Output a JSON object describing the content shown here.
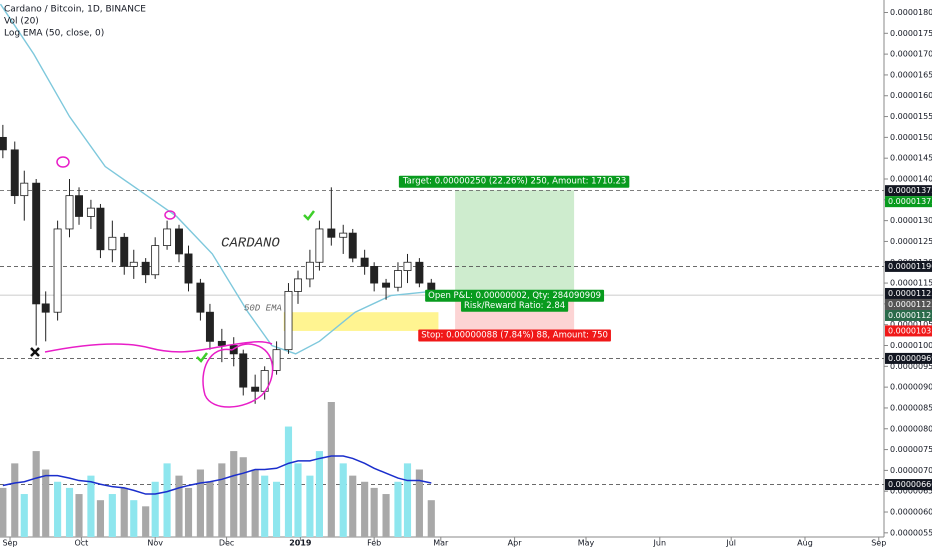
{
  "header": {
    "title": "Cardano / Bitcoin, 1D, BINANCE",
    "indicators": [
      "Vol (20)",
      "Log EMA (50, close, 0)"
    ]
  },
  "chart_data": {
    "type": "candlestick",
    "xlim": [
      -4.2,
      367.2
    ],
    "xticks": [
      {
        "value": 0,
        "label": "Sep"
      },
      {
        "value": 30,
        "label": "Oct"
      },
      {
        "value": 61,
        "label": "Nov"
      },
      {
        "value": 91,
        "label": "Dec"
      },
      {
        "value": 122,
        "label": "2019"
      },
      {
        "value": 153,
        "label": "Feb"
      },
      {
        "value": 181,
        "label": "Mar"
      },
      {
        "value": 212,
        "label": "Apr"
      },
      {
        "value": 242,
        "label": "May"
      },
      {
        "value": 273,
        "label": "Jun"
      },
      {
        "value": 303,
        "label": "Jul"
      },
      {
        "value": 334,
        "label": "Aug"
      },
      {
        "value": 365,
        "label": "Sep"
      }
    ],
    "ylim": [
      5.4e-06,
      1.83e-05
    ],
    "yticks": [
      {
        "value": 5.5e-06,
        "label": "0.00000550"
      },
      {
        "value": 6e-06,
        "label": "0.00000600"
      },
      {
        "value": 6.5e-06,
        "label": "0.00000650"
      },
      {
        "value": 7e-06,
        "label": "0.00000700"
      },
      {
        "value": 7.5e-06,
        "label": "0.00000750"
      },
      {
        "value": 8e-06,
        "label": "0.00000800"
      },
      {
        "value": 8.5e-06,
        "label": "0.00000850"
      },
      {
        "value": 9e-06,
        "label": "0.00000900"
      },
      {
        "value": 9.5e-06,
        "label": "0.00000950"
      },
      {
        "value": 1e-05,
        "label": "0.00001000"
      },
      {
        "value": 1.05e-05,
        "label": "0.00001050"
      },
      {
        "value": 1.1e-05,
        "label": "0.00001100"
      },
      {
        "value": 1.15e-05,
        "label": "0.00001150"
      },
      {
        "value": 1.2e-05,
        "label": "0.00001200"
      },
      {
        "value": 1.25e-05,
        "label": "0.00001250"
      },
      {
        "value": 1.3e-05,
        "label": "0.00001300"
      },
      {
        "value": 1.35e-05,
        "label": "0.00001350"
      },
      {
        "value": 1.4e-05,
        "label": "0.00001400"
      },
      {
        "value": 1.45e-05,
        "label": "0.00001450"
      },
      {
        "value": 1.5e-05,
        "label": "0.00001500"
      },
      {
        "value": 1.55e-05,
        "label": "0.00001550"
      },
      {
        "value": 1.6e-05,
        "label": "0.00001600"
      },
      {
        "value": 1.65e-05,
        "label": "0.00001650"
      },
      {
        "value": 1.7e-05,
        "label": "0.00001700"
      },
      {
        "value": 1.75e-05,
        "label": "0.00001750"
      },
      {
        "value": 1.8e-05,
        "label": "0.00001800"
      }
    ],
    "x": [
      -3,
      2,
      6,
      11,
      15,
      20,
      25,
      29,
      34,
      38,
      43,
      48,
      52,
      57,
      61,
      66,
      71,
      75,
      80,
      84,
      89,
      94,
      98,
      103,
      107,
      112,
      117,
      121,
      126,
      130,
      135,
      140,
      144,
      149,
      153,
      158,
      163,
      167,
      172,
      177
    ],
    "open": [
      1.5e-05,
      1.47e-05,
      1.36e-05,
      1.39e-05,
      1.1e-05,
      1.08e-05,
      1.28e-05,
      1.36e-05,
      1.31e-05,
      1.33e-05,
      1.23e-05,
      1.26e-05,
      1.19e-05,
      1.2e-05,
      1.17e-05,
      1.24e-05,
      1.28e-05,
      1.22e-05,
      1.15e-05,
      1.08e-05,
      1.01e-05,
      1e-05,
      9.8e-06,
      9e-06,
      8.9e-06,
      9.4e-06,
      9.9e-06,
      1.13e-05,
      1.16e-05,
      1.2e-05,
      1.28e-05,
      1.26e-05,
      1.27e-05,
      1.21e-05,
      1.19e-05,
      1.15e-05,
      1.14e-05,
      1.18e-05,
      1.2e-05,
      1.15e-05
    ],
    "high": [
      1.53e-05,
      1.49e-05,
      1.42e-05,
      1.4e-05,
      1.13e-05,
      1.3e-05,
      1.4e-05,
      1.38e-05,
      1.35e-05,
      1.34e-05,
      1.3e-05,
      1.27e-05,
      1.23e-05,
      1.21e-05,
      1.26e-05,
      1.3e-05,
      1.29e-05,
      1.24e-05,
      1.16e-05,
      1.1e-05,
      1.04e-05,
      1.02e-05,
      9.9e-06,
      9.3e-06,
      9.5e-06,
      1.01e-05,
      1.15e-05,
      1.18e-05,
      1.23e-05,
      1.3e-05,
      1.38e-05,
      1.29e-05,
      1.28e-05,
      1.23e-05,
      1.2e-05,
      1.16e-05,
      1.2e-05,
      1.22e-05,
      1.21e-05,
      1.16e-05
    ],
    "low": [
      1.45e-05,
      1.34e-05,
      1.3e-05,
      1e-05,
      1.01e-05,
      1.06e-05,
      1.26e-05,
      1.29e-05,
      1.28e-05,
      1.21e-05,
      1.2e-05,
      1.17e-05,
      1.16e-05,
      1.15e-05,
      1.16e-05,
      1.23e-05,
      1.2e-05,
      1.13e-05,
      1.06e-05,
      9.9e-06,
      9.6e-06,
      9.5e-06,
      8.8e-06,
      8.6e-06,
      8.7e-06,
      9.3e-06,
      9.8e-06,
      1.1e-05,
      1.14e-05,
      1.18e-05,
      1.24e-05,
      1.22e-05,
      1.2e-05,
      1.17e-05,
      1.13e-05,
      1.11e-05,
      1.13e-05,
      1.15e-05,
      1.14e-05,
      1.11e-05
    ],
    "close": [
      1.47e-05,
      1.36e-05,
      1.39e-05,
      1.1e-05,
      1.08e-05,
      1.28e-05,
      1.36e-05,
      1.31e-05,
      1.33e-05,
      1.23e-05,
      1.26e-05,
      1.19e-05,
      1.2e-05,
      1.17e-05,
      1.24e-05,
      1.28e-05,
      1.22e-05,
      1.15e-05,
      1.08e-05,
      1.01e-05,
      1e-05,
      9.8e-06,
      9e-06,
      8.9e-06,
      9.4e-06,
      9.9e-06,
      1.13e-05,
      1.16e-05,
      1.2e-05,
      1.28e-05,
      1.26e-05,
      1.27e-05,
      1.21e-05,
      1.19e-05,
      1.15e-05,
      1.14e-05,
      1.18e-05,
      1.2e-05,
      1.15e-05,
      1.121e-05
    ],
    "volume": [
      40,
      60,
      35,
      70,
      55,
      45,
      40,
      35,
      50,
      30,
      35,
      40,
      30,
      25,
      45,
      60,
      50,
      40,
      55,
      45,
      60,
      70,
      65,
      55,
      50,
      45,
      90,
      60,
      50,
      70,
      110,
      60,
      50,
      45,
      40,
      35,
      45,
      60,
      55,
      30
    ],
    "volume_ma": [
      42,
      44,
      45,
      48,
      50,
      50,
      48,
      46,
      45,
      43,
      41,
      40,
      38,
      35,
      35,
      37,
      40,
      42,
      44,
      45,
      47,
      50,
      52,
      55,
      55,
      56,
      60,
      62,
      62,
      64,
      66,
      66,
      64,
      60,
      56,
      52,
      48,
      46,
      46,
      44
    ],
    "up_color": "#ffffff",
    "down_color": "#222222",
    "volume_up_color": "#8ee6ee",
    "volume_down_color": "#a8a8a8",
    "volume_ma_color": "#1a2ecc",
    "ema": {
      "color": "#7ec8dc",
      "x": [
        -4,
        10,
        25,
        40,
        55,
        70,
        85,
        100,
        110,
        120,
        130,
        145,
        160,
        177
      ],
      "values": [
        1.82e-05,
        1.7e-05,
        1.55e-05,
        1.43e-05,
        1.37e-05,
        1.31e-05,
        1.22e-05,
        1.08e-05,
        1e-05,
        9.8e-06,
        1.01e-05,
        1.08e-05,
        1.12e-05,
        1.13e-05
      ]
    },
    "hlines": [
      1.372e-05,
      1.19e-05,
      9.69e-06,
      6.66e-06
    ],
    "zone": {
      "color": "#fff176",
      "x": [
        115,
        180
      ],
      "y": [
        1.035e-05,
        1.08e-05
      ]
    },
    "trade": {
      "start": 187,
      "end": 237,
      "target": 1.373e-05,
      "entry": 1.123e-05,
      "stop": 1.035e-05,
      "target_label": "Target: 0.00000250 (22.26%) 250, Amount: 1710.23",
      "pnl_label": "Open P&L: 0.00000002, Qty: 284090909",
      "rr_label": "Risk/Reward Ratio: 2.84",
      "stop_label": "Stop: 0.00000088 (7.84%) 88, Amount: 750"
    },
    "price_tags": [
      {
        "value": 1.372e-05,
        "label": "0.00001372",
        "color": "#131722"
      },
      {
        "value": 1.373e-05,
        "label": "0.00001373",
        "color": "#089b1e"
      },
      {
        "value": 1.19e-05,
        "label": "0.00001190",
        "color": "#131722"
      },
      {
        "value": 1.125e-05,
        "label": "0.00001125",
        "color": "#131722"
      },
      {
        "value": 1.123e-05,
        "label": "0.00001123",
        "color": "#555555"
      },
      {
        "value": 1.121e-05,
        "label": "0.00001121",
        "color": "#2a6b4b"
      },
      {
        "value": 1.035e-05,
        "label": "0.00001035",
        "color": "#f01818"
      },
      {
        "value": 9.69e-06,
        "label": "0.00000969",
        "color": "#131722"
      },
      {
        "value": 6.66e-06,
        "label": "0.00000666",
        "color": "#131722"
      }
    ],
    "annotations": [
      "CARDANO",
      "50D EMA"
    ]
  }
}
